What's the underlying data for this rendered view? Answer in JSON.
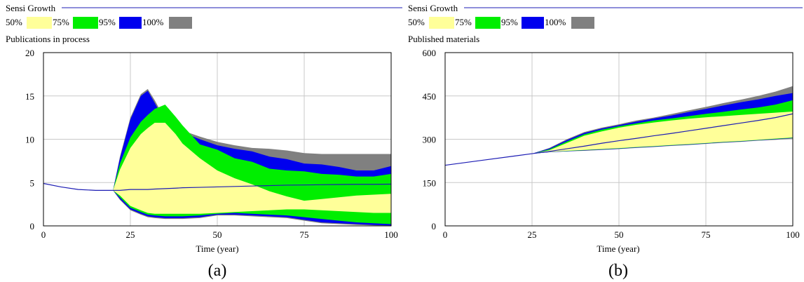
{
  "colors": {
    "band_50": "#ffff99",
    "band_75": "#00ee00",
    "band_95": "#0000ee",
    "band_100": "#808080",
    "line": "#1c1cb4",
    "grid": "#c8c8c8"
  },
  "chart_data": [
    {
      "type": "area",
      "panel_caption": "(a)",
      "title": "Sensi Growth",
      "legend": [
        "50%",
        "75%",
        "95%",
        "100%"
      ],
      "legend_placement": "top-left",
      "ylabel": "Publications in process",
      "xlabel": "Time (year)",
      "xlim": [
        0,
        100
      ],
      "ylim": [
        0,
        20
      ],
      "x_ticks": [
        "0",
        "25",
        "50",
        "75",
        "100"
      ],
      "y_ticks": [
        "0",
        "5",
        "10",
        "15",
        "20"
      ],
      "grid": true,
      "x": [
        0,
        5,
        10,
        15,
        20,
        22,
        25,
        28,
        30,
        32,
        35,
        38,
        40,
        45,
        50,
        55,
        60,
        65,
        70,
        75,
        80,
        85,
        90,
        95,
        100
      ],
      "bands": {
        "100": {
          "lower": [
            4.9,
            4.5,
            4.2,
            4.1,
            4.1,
            3.0,
            1.8,
            1.3,
            1.0,
            0.9,
            0.8,
            0.8,
            0.8,
            0.9,
            1.2,
            1.2,
            1.1,
            1.0,
            0.9,
            0.6,
            0.3,
            0.2,
            0.1,
            0.05,
            0.0
          ],
          "upper": [
            4.9,
            4.5,
            4.2,
            4.1,
            4.1,
            8.0,
            12.5,
            15.2,
            15.8,
            14.5,
            12.3,
            11.5,
            11.0,
            10.3,
            9.7,
            9.3,
            9.0,
            8.9,
            8.7,
            8.4,
            8.3,
            8.3,
            8.3,
            8.3,
            8.3
          ]
        },
        "95": {
          "lower": [
            4.9,
            4.5,
            4.2,
            4.1,
            4.1,
            3.1,
            1.9,
            1.4,
            1.1,
            1.0,
            0.9,
            0.9,
            0.9,
            1.0,
            1.3,
            1.3,
            1.2,
            1.1,
            1.0,
            0.7,
            0.4,
            0.3,
            0.2,
            0.1,
            0.05
          ],
          "upper": [
            4.9,
            4.5,
            4.2,
            4.1,
            4.1,
            7.8,
            12.3,
            15.0,
            15.6,
            14.2,
            12.0,
            11.2,
            10.8,
            10.0,
            9.3,
            8.9,
            8.6,
            8.0,
            7.7,
            7.2,
            7.1,
            6.8,
            6.4,
            6.4,
            6.9
          ]
        },
        "75": {
          "lower": [
            4.9,
            4.5,
            4.2,
            4.1,
            4.1,
            3.3,
            2.1,
            1.6,
            1.3,
            1.2,
            1.1,
            1.1,
            1.1,
            1.2,
            1.4,
            1.5,
            1.4,
            1.3,
            1.2,
            1.0,
            0.8,
            0.6,
            0.4,
            0.3,
            0.2
          ],
          "upper": [
            4.9,
            4.5,
            4.2,
            4.1,
            4.1,
            7.2,
            10.2,
            12.0,
            12.8,
            13.5,
            14.0,
            12.6,
            11.6,
            9.4,
            8.8,
            7.8,
            7.4,
            6.6,
            6.4,
            6.3,
            6.0,
            5.9,
            5.7,
            5.7,
            6.0
          ]
        },
        "50": {
          "lower": [
            4.9,
            4.5,
            4.2,
            4.1,
            4.1,
            3.5,
            2.3,
            1.8,
            1.5,
            1.4,
            1.4,
            1.4,
            1.4,
            1.4,
            1.5,
            1.6,
            1.7,
            1.8,
            1.9,
            1.9,
            1.8,
            1.7,
            1.6,
            1.5,
            1.5
          ]
        }
      },
      "band_50_upper": [
        4.9,
        4.5,
        4.2,
        4.1,
        4.1,
        6.5,
        9.0,
        10.6,
        11.3,
        11.9,
        11.9,
        10.6,
        9.5,
        7.8,
        6.4,
        5.5,
        4.8,
        4.0,
        3.4,
        2.9,
        3.1,
        3.3,
        3.5,
        3.6,
        3.7
      ],
      "line": [
        4.9,
        4.5,
        4.2,
        4.1,
        4.1,
        4.1,
        4.2,
        4.2,
        4.2,
        4.25,
        4.3,
        4.35,
        4.4,
        4.45,
        4.5,
        4.55,
        4.6,
        4.65,
        4.7,
        4.72,
        4.75,
        4.78,
        4.8,
        4.8,
        4.82
      ]
    },
    {
      "type": "area",
      "panel_caption": "(b)",
      "title": "Sensi Growth",
      "legend": [
        "50%",
        "75%",
        "95%",
        "100%"
      ],
      "legend_placement": "top-left",
      "ylabel": "Published materials",
      "xlabel": "Time (year)",
      "xlim": [
        0,
        100
      ],
      "ylim": [
        0,
        600
      ],
      "x_ticks": [
        "0",
        "25",
        "50",
        "75",
        "100"
      ],
      "y_ticks": [
        "0",
        "150",
        "300",
        "450",
        "600"
      ],
      "grid": true,
      "x": [
        0,
        10,
        20,
        25,
        30,
        35,
        40,
        45,
        50,
        55,
        60,
        65,
        70,
        75,
        80,
        85,
        90,
        95,
        100
      ],
      "bands": {
        "100": {
          "lower": [
            210,
            226,
            242,
            250,
            255,
            258,
            260,
            263,
            266,
            270,
            273,
            277,
            280,
            284,
            288,
            291,
            295,
            298,
            302
          ],
          "upper": [
            210,
            226,
            242,
            250,
            270,
            300,
            325,
            340,
            352,
            365,
            375,
            387,
            400,
            412,
            425,
            437,
            450,
            465,
            484
          ]
        },
        "95": {
          "lower": [
            210,
            226,
            242,
            250,
            255,
            258,
            261,
            264,
            267,
            271,
            274,
            278,
            281,
            285,
            289,
            292,
            296,
            300,
            304
          ],
          "upper": [
            210,
            226,
            242,
            250,
            268,
            297,
            322,
            337,
            349,
            361,
            372,
            382,
            394,
            405,
            417,
            428,
            438,
            450,
            460
          ]
        },
        "75": {
          "lower": [
            210,
            226,
            242,
            250,
            256,
            259,
            262,
            265,
            268,
            272,
            275,
            279,
            282,
            286,
            290,
            293,
            297,
            301,
            305
          ],
          "upper": [
            210,
            226,
            242,
            250,
            265,
            292,
            317,
            333,
            345,
            355,
            365,
            372,
            380,
            388,
            395,
            403,
            410,
            420,
            435
          ]
        },
        "50": {
          "lower": [
            210,
            226,
            242,
            250,
            256,
            260,
            263,
            266,
            269,
            273,
            276,
            280,
            283,
            287,
            291,
            294,
            298,
            302,
            306
          ]
        }
      },
      "band_50_upper": [
        210,
        226,
        242,
        250,
        262,
        287,
        312,
        327,
        340,
        350,
        358,
        365,
        371,
        376,
        380,
        384,
        388,
        392,
        396
      ],
      "line": [
        210,
        226,
        242,
        250,
        258,
        267,
        276,
        286,
        295,
        303,
        312,
        320,
        329,
        338,
        347,
        356,
        365,
        375,
        388
      ]
    }
  ]
}
